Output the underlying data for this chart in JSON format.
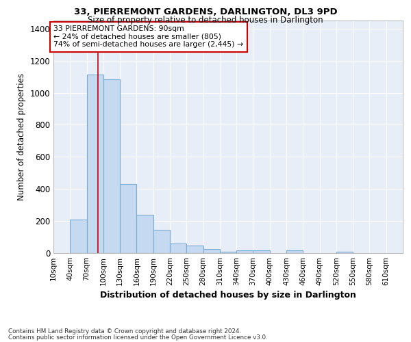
{
  "title": "33, PIERREMONT GARDENS, DARLINGTON, DL3 9PD",
  "subtitle": "Size of property relative to detached houses in Darlington",
  "xlabel": "Distribution of detached houses by size in Darlington",
  "ylabel": "Number of detached properties",
  "bar_color": "#c5d9f0",
  "bar_edge_color": "#7aadd4",
  "background_color": "#e8eef8",
  "grid_color": "#ffffff",
  "annotation_box_color": "#cc0000",
  "annotation_text": "33 PIERREMONT GARDENS: 90sqm\n← 24% of detached houses are smaller (805)\n74% of semi-detached houses are larger (2,445) →",
  "vline_x": 90,
  "vline_color": "#cc0000",
  "categories": [
    "10sqm",
    "40sqm",
    "70sqm",
    "100sqm",
    "130sqm",
    "160sqm",
    "190sqm",
    "220sqm",
    "250sqm",
    "280sqm",
    "310sqm",
    "340sqm",
    "370sqm",
    "400sqm",
    "430sqm",
    "460sqm",
    "490sqm",
    "520sqm",
    "550sqm",
    "580sqm",
    "610sqm"
  ],
  "values": [
    0,
    210,
    1115,
    1085,
    430,
    240,
    145,
    60,
    45,
    25,
    10,
    15,
    15,
    0,
    15,
    0,
    0,
    10,
    0,
    0,
    0
  ],
  "bin_edges": [
    10,
    40,
    70,
    100,
    130,
    160,
    190,
    220,
    250,
    280,
    310,
    340,
    370,
    400,
    430,
    460,
    490,
    520,
    550,
    580,
    610,
    640
  ],
  "ylim": [
    0,
    1450
  ],
  "yticks": [
    0,
    200,
    400,
    600,
    800,
    1000,
    1200,
    1400
  ],
  "footer1": "Contains HM Land Registry data © Crown copyright and database right 2024.",
  "footer2": "Contains public sector information licensed under the Open Government Licence v3.0."
}
